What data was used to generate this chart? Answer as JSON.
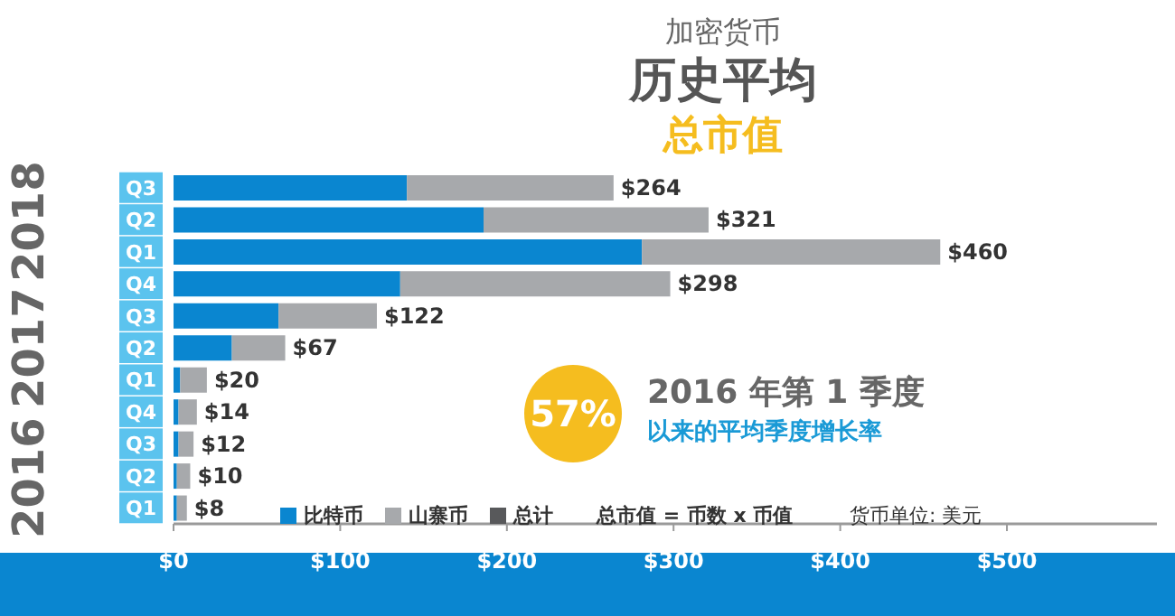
{
  "chart_data": {
    "type": "bar",
    "orientation": "horizontal",
    "stacked": true,
    "title": "历史平均",
    "subtitle": "总市值",
    "categories": [
      "Q3",
      "Q2",
      "Q1",
      "Q4",
      "Q3",
      "Q2",
      "Q1",
      "Q4",
      "Q3",
      "Q2",
      "Q1"
    ],
    "series": [
      {
        "name": "比特币",
        "color": "#0a86d0",
        "values": [
          140,
          186,
          281,
          136,
          63,
          35,
          4,
          3,
          3,
          2,
          2
        ]
      },
      {
        "name": "山寨币",
        "color": "#a7a9ac",
        "values": [
          124,
          135,
          179,
          162,
          59,
          32,
          16,
          11,
          9,
          8,
          6
        ]
      },
      {
        "name": "总计",
        "color": "#58595b",
        "values": [
          null,
          null,
          null,
          null,
          null,
          null,
          null,
          null,
          null,
          null,
          null
        ]
      }
    ],
    "totals": [
      "$264",
      "$321",
      "$460",
      "$298",
      "$122",
      "$67",
      "$20",
      "$14",
      "$12",
      "$10",
      "$8"
    ],
    "xlim": [
      0,
      590
    ],
    "xticks": [
      {
        "value": 0,
        "label": "$0"
      },
      {
        "value": 100,
        "label": "$100"
      },
      {
        "value": 200,
        "label": "$200"
      },
      {
        "value": 300,
        "label": "$300"
      },
      {
        "value": 400,
        "label": "$400"
      },
      {
        "value": 500,
        "label": "$500"
      }
    ],
    "legend": "bottom",
    "annotations": [
      "加密货币",
      "2018",
      "2017",
      "2016",
      "57%",
      "2016 年第 1 季度",
      "以来的平均季度增长率",
      "总市值 = 币数 x 币值",
      "货币单位: 美元"
    ]
  }
}
